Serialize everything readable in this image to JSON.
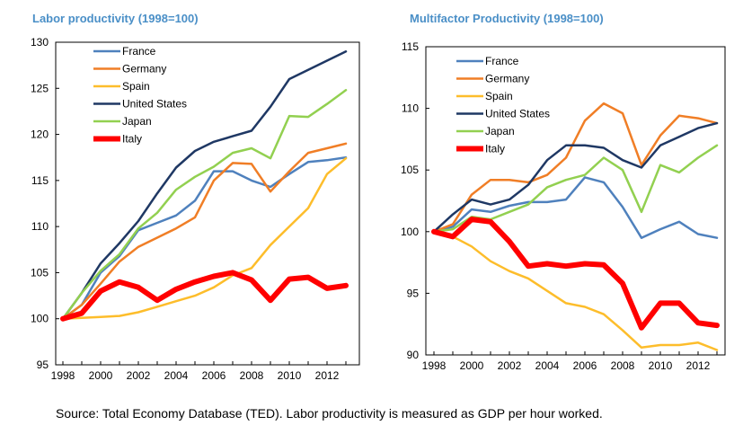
{
  "titles": {
    "left": "Labor productivity  (1998=100)",
    "right": "Multifactor Productivity  (1998=100)"
  },
  "source": "Source: Total Economy Database (TED). Labor productivity is measured as GDP per hour worked.",
  "chart_data": [
    {
      "type": "line",
      "title": "Labor productivity  (1998=100)",
      "x": [
        1998,
        1999,
        2000,
        2001,
        2002,
        2003,
        2004,
        2005,
        2006,
        2007,
        2008,
        2009,
        2010,
        2011,
        2012,
        2013
      ],
      "xticks": [
        "1998",
        "2000",
        "2002",
        "2004",
        "2006",
        "2008",
        "2010",
        "2012"
      ],
      "ylim": [
        95,
        130
      ],
      "yticks": [
        95,
        100,
        105,
        110,
        115,
        120,
        125,
        130
      ],
      "legend_position": "top-left",
      "series": [
        {
          "name": "France",
          "color": "#4f81bd",
          "width": 2.5,
          "values": [
            100,
            101.5,
            105,
            106.8,
            109.6,
            110.4,
            111.2,
            112.8,
            116,
            116,
            115,
            114.3,
            115.7,
            117,
            117.2,
            117.5
          ]
        },
        {
          "name": "Germany",
          "color": "#f07e26",
          "width": 2.5,
          "values": [
            100,
            101.5,
            103.8,
            106.2,
            107.8,
            108.8,
            109.8,
            111,
            115,
            116.9,
            116.8,
            113.8,
            116,
            118,
            118.5,
            119
          ]
        },
        {
          "name": "Spain",
          "color": "#fdbd2b",
          "width": 2.5,
          "values": [
            100,
            100.1,
            100.2,
            100.3,
            100.7,
            101.3,
            101.9,
            102.5,
            103.4,
            104.7,
            105.5,
            108,
            110,
            112,
            115.7,
            117.4
          ]
        },
        {
          "name": "United States",
          "color": "#1f3864",
          "width": 2.5,
          "values": [
            100,
            102.8,
            106,
            108.2,
            110.6,
            113.6,
            116.4,
            118.2,
            119.2,
            119.8,
            120.4,
            123,
            126,
            127,
            128,
            129
          ]
        },
        {
          "name": "Japan",
          "color": "#92d050",
          "width": 2.5,
          "values": [
            100,
            102.8,
            105.2,
            107,
            109.8,
            111.5,
            114,
            115.4,
            116.5,
            118,
            118.5,
            117.4,
            122,
            121.9,
            123.3,
            124.8
          ]
        },
        {
          "name": "Italy",
          "color": "#ff0000",
          "width": 6,
          "values": [
            100,
            100.6,
            103,
            104,
            103.4,
            102,
            103.2,
            104,
            104.6,
            105,
            104.2,
            102,
            104.3,
            104.5,
            103.3,
            103.6
          ]
        }
      ]
    },
    {
      "type": "line",
      "title": "Multifactor Productivity  (1998=100)",
      "x": [
        1998,
        1999,
        2000,
        2001,
        2002,
        2003,
        2004,
        2005,
        2006,
        2007,
        2008,
        2009,
        2010,
        2011,
        2012,
        2013
      ],
      "xticks": [
        "1998",
        "2000",
        "2002",
        "2004",
        "2006",
        "2008",
        "2010",
        "2012"
      ],
      "ylim": [
        90,
        115
      ],
      "yticks": [
        90,
        95,
        100,
        105,
        110,
        115
      ],
      "legend_position": "top-left",
      "series": [
        {
          "name": "France",
          "color": "#4f81bd",
          "width": 2.5,
          "values": [
            100,
            100.4,
            101.8,
            101.6,
            102.1,
            102.4,
            102.4,
            102.6,
            104.4,
            104,
            102,
            99.5,
            100.2,
            100.8,
            99.8,
            99.5
          ]
        },
        {
          "name": "Germany",
          "color": "#f07e26",
          "width": 2.5,
          "values": [
            100,
            100.6,
            103,
            104.2,
            104.2,
            104,
            104.6,
            106,
            109,
            110.4,
            109.6,
            105.4,
            107.8,
            109.4,
            109.2,
            108.8
          ]
        },
        {
          "name": "Spain",
          "color": "#fdbd2b",
          "width": 2.5,
          "values": [
            100,
            99.6,
            98.8,
            97.6,
            96.8,
            96.2,
            95.2,
            94.2,
            93.9,
            93.3,
            92,
            90.6,
            90.8,
            90.8,
            91,
            90.4
          ]
        },
        {
          "name": "United States",
          "color": "#1f3864",
          "width": 2.5,
          "values": [
            100,
            101.4,
            102.6,
            102.2,
            102.6,
            103.8,
            105.8,
            107,
            107,
            106.8,
            105.8,
            105.2,
            107,
            107.7,
            108.4,
            108.8
          ]
        },
        {
          "name": "Japan",
          "color": "#92d050",
          "width": 2.5,
          "values": [
            100,
            100.2,
            101.2,
            101,
            101.6,
            102.2,
            103.6,
            104.2,
            104.6,
            106,
            105,
            101.6,
            105.4,
            104.8,
            106,
            107
          ]
        },
        {
          "name": "Italy",
          "color": "#ff0000",
          "width": 6,
          "values": [
            100,
            99.6,
            101,
            100.8,
            99.2,
            97.2,
            97.4,
            97.2,
            97.4,
            97.3,
            95.8,
            92.2,
            94.2,
            94.2,
            92.6,
            92.4
          ]
        }
      ]
    }
  ]
}
